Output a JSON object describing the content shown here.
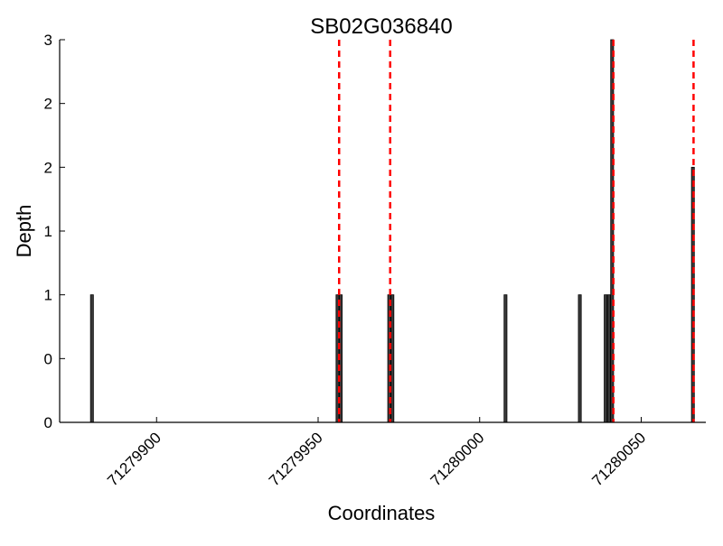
{
  "chart_data": {
    "type": "bar",
    "title": "SB02G036840",
    "xlabel": "Coordinates",
    "ylabel": "Depth",
    "xlim": [
      71279870,
      71280070
    ],
    "ylim": [
      0,
      3
    ],
    "x_ticks": [
      71279900,
      71279950,
      71280000,
      71280050
    ],
    "x_tick_labels": [
      "71279900",
      "71279950",
      "71280000",
      "71280050"
    ],
    "y_ticks": [
      0,
      0.5,
      1,
      1.5,
      2,
      2.5,
      3
    ],
    "y_tick_labels": [
      "0",
      "0",
      "1",
      "1",
      "2",
      "2",
      "3"
    ],
    "bar_color": "#3a3a3a",
    "reference_line_color": "#ff0000",
    "series": [
      {
        "x": [
          71279880,
          71279956,
          71279957,
          71279972,
          71279973,
          71280008,
          71280031,
          71280039,
          71280040,
          71280041,
          71280066
        ],
        "values": [
          1,
          1,
          1,
          1,
          1,
          1,
          1,
          1,
          1,
          3,
          2
        ]
      }
    ],
    "reference_lines_x": [
      71279956.5,
      71279972.3,
      71280041.4,
      71280066.2
    ],
    "grid": false
  }
}
